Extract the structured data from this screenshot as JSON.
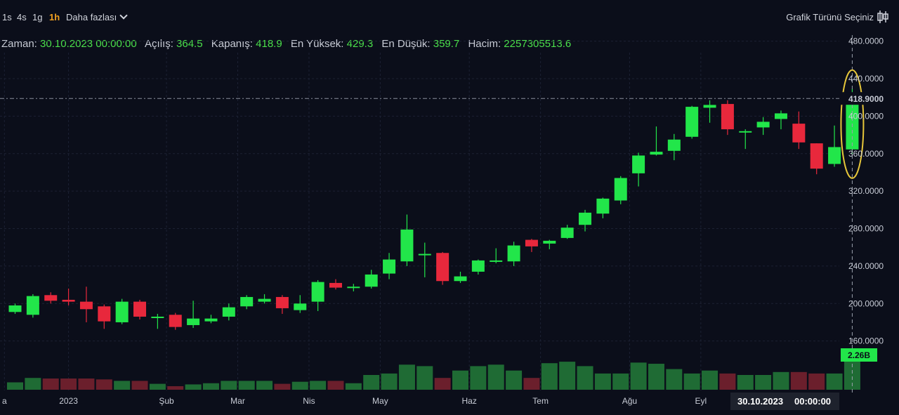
{
  "toolbar": {
    "timeframes": [
      "1s",
      "4s",
      "1g",
      "1h"
    ],
    "active_timeframe": "1h",
    "more_label": "Daha fazlası",
    "chart_type_label": "Grafik Türünü Seçiniz"
  },
  "info": {
    "time_label": "Zaman:",
    "time_value": "30.10.2023 00:00:00",
    "open_label": "Açılış:",
    "open_value": "364.5",
    "close_label": "Kapanış:",
    "close_value": "418.9",
    "high_label": "En Yüksek:",
    "high_value": "429.3",
    "low_label": "En Düşük:",
    "low_value": "359.7",
    "volume_label": "Hacim:",
    "volume_value": "2257305513.6"
  },
  "colors": {
    "up": "#22e64a",
    "down": "#e8283c",
    "vol_up": "#1f6b34",
    "vol_down": "#6b1f2c",
    "highlight": "#e6c63a",
    "label_bg": "#22e64a"
  },
  "chart_data": {
    "type": "candlestick",
    "ylim": [
      150,
      500
    ],
    "y_ticks": [
      480,
      440,
      400,
      360,
      320,
      280,
      240,
      200,
      160
    ],
    "y_tick_labels": [
      "480.0000",
      "440.0000",
      "400.0000",
      "360.0000",
      "320.0000",
      "280.0000",
      "240.0000",
      "200.0000",
      "160.0000"
    ],
    "x_labels": [
      {
        "index": -0.6,
        "label": "a"
      },
      {
        "index": 3,
        "label": "2023"
      },
      {
        "index": 8.5,
        "label": "Şub"
      },
      {
        "index": 12.5,
        "label": "Mar"
      },
      {
        "index": 16.5,
        "label": "Nis"
      },
      {
        "index": 20.5,
        "label": "May"
      },
      {
        "index": 25.5,
        "label": "Haz"
      },
      {
        "index": 29.5,
        "label": "Tem"
      },
      {
        "index": 34.5,
        "label": "Ağu"
      },
      {
        "index": 38.5,
        "label": "Eyl"
      }
    ],
    "cursor_date": "30.10.2023",
    "cursor_time": "00:00:00",
    "last_close_label": "418.9000",
    "volume_label": "2.26B",
    "candles": [
      {
        "o": 191,
        "c": 198,
        "h": 200,
        "l": 189,
        "v": 0.25
      },
      {
        "o": 188,
        "c": 208,
        "h": 210,
        "l": 185,
        "v": 0.4
      },
      {
        "o": 209,
        "c": 203,
        "h": 212,
        "l": 200,
        "v": 0.38
      },
      {
        "o": 204,
        "c": 202,
        "h": 216,
        "l": 198,
        "v": 0.38
      },
      {
        "o": 202,
        "c": 194,
        "h": 218,
        "l": 180,
        "v": 0.38
      },
      {
        "o": 197,
        "c": 181,
        "h": 199,
        "l": 173,
        "v": 0.35
      },
      {
        "o": 180,
        "c": 202,
        "h": 205,
        "l": 178,
        "v": 0.3
      },
      {
        "o": 202,
        "c": 186,
        "h": 204,
        "l": 183,
        "v": 0.3
      },
      {
        "o": 186,
        "c": 186,
        "h": 189,
        "l": 173,
        "v": 0.2
      },
      {
        "o": 188,
        "c": 175,
        "h": 190,
        "l": 172,
        "v": 0.12
      },
      {
        "o": 177,
        "c": 184,
        "h": 203,
        "l": 174,
        "v": 0.18
      },
      {
        "o": 181,
        "c": 184,
        "h": 188,
        "l": 179,
        "v": 0.22
      },
      {
        "o": 186,
        "c": 196,
        "h": 200,
        "l": 182,
        "v": 0.3
      },
      {
        "o": 197,
        "c": 207,
        "h": 209,
        "l": 194,
        "v": 0.3
      },
      {
        "o": 202,
        "c": 205,
        "h": 210,
        "l": 200,
        "v": 0.3
      },
      {
        "o": 207,
        "c": 195,
        "h": 209,
        "l": 189,
        "v": 0.2
      },
      {
        "o": 193,
        "c": 200,
        "h": 209,
        "l": 190,
        "v": 0.27
      },
      {
        "o": 202,
        "c": 223,
        "h": 225,
        "l": 192,
        "v": 0.3
      },
      {
        "o": 222,
        "c": 217,
        "h": 226,
        "l": 215,
        "v": 0.3
      },
      {
        "o": 218,
        "c": 218,
        "h": 221,
        "l": 213,
        "v": 0.22
      },
      {
        "o": 218,
        "c": 231,
        "h": 236,
        "l": 216,
        "v": 0.5
      },
      {
        "o": 232,
        "c": 247,
        "h": 254,
        "l": 226,
        "v": 0.55
      },
      {
        "o": 245,
        "c": 279,
        "h": 295,
        "l": 240,
        "v": 0.85
      },
      {
        "o": 253,
        "c": 253,
        "h": 265,
        "l": 228,
        "v": 0.8
      },
      {
        "o": 254,
        "c": 224,
        "h": 255,
        "l": 220,
        "v": 0.4
      },
      {
        "o": 224,
        "c": 229,
        "h": 234,
        "l": 222,
        "v": 0.65
      },
      {
        "o": 234,
        "c": 246,
        "h": 247,
        "l": 231,
        "v": 0.8
      },
      {
        "o": 246,
        "c": 246,
        "h": 259,
        "l": 243,
        "v": 0.85
      },
      {
        "o": 245,
        "c": 262,
        "h": 266,
        "l": 240,
        "v": 0.65
      },
      {
        "o": 268,
        "c": 261,
        "h": 269,
        "l": 255,
        "v": 0.4
      },
      {
        "o": 264,
        "c": 267,
        "h": 268,
        "l": 258,
        "v": 0.9
      },
      {
        "o": 270,
        "c": 281,
        "h": 284,
        "l": 269,
        "v": 0.95
      },
      {
        "o": 284,
        "c": 297,
        "h": 300,
        "l": 277,
        "v": 0.8
      },
      {
        "o": 296,
        "c": 312,
        "h": 313,
        "l": 291,
        "v": 0.55
      },
      {
        "o": 310,
        "c": 334,
        "h": 336,
        "l": 306,
        "v": 0.55
      },
      {
        "o": 339,
        "c": 358,
        "h": 361,
        "l": 325,
        "v": 0.92
      },
      {
        "o": 359,
        "c": 362,
        "h": 389,
        "l": 358,
        "v": 0.88
      },
      {
        "o": 363,
        "c": 375,
        "h": 381,
        "l": 353,
        "v": 0.7
      },
      {
        "o": 378,
        "c": 410,
        "h": 411,
        "l": 376,
        "v": 0.55
      },
      {
        "o": 409,
        "c": 412,
        "h": 417,
        "l": 393,
        "v": 0.65
      },
      {
        "o": 413,
        "c": 386,
        "h": 417,
        "l": 380,
        "v": 0.55
      },
      {
        "o": 384,
        "c": 384,
        "h": 386,
        "l": 365,
        "v": 0.5
      },
      {
        "o": 388,
        "c": 394,
        "h": 399,
        "l": 380,
        "v": 0.5
      },
      {
        "o": 397,
        "c": 403,
        "h": 406,
        "l": 386,
        "v": 0.6
      },
      {
        "o": 392,
        "c": 372,
        "h": 405,
        "l": 365,
        "v": 0.6
      },
      {
        "o": 371,
        "c": 344,
        "h": 371,
        "l": 338,
        "v": 0.55
      },
      {
        "o": 349,
        "c": 367,
        "h": 390,
        "l": 346,
        "v": 0.55
      },
      {
        "o": 364.5,
        "c": 418.9,
        "h": 429.3,
        "l": 359.7,
        "v": 1.2
      }
    ]
  }
}
